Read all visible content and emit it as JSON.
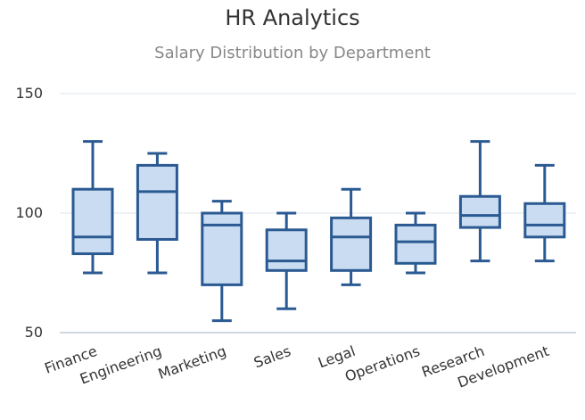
{
  "chart_data": {
    "type": "boxplot",
    "title": "HR Analytics",
    "subtitle": "Salary Distribution by Department",
    "categories": [
      "Finance",
      "Engineering",
      "Marketing",
      "Sales",
      "Legal",
      "Operations",
      "Research",
      "Development"
    ],
    "boxes": [
      {
        "min": 75,
        "q1": 83,
        "median": 90,
        "q3": 110,
        "max": 130
      },
      {
        "min": 75,
        "q1": 89,
        "median": 109,
        "q3": 120,
        "max": 125
      },
      {
        "min": 55,
        "q1": 70,
        "median": 95,
        "q3": 100,
        "max": 105
      },
      {
        "min": 60,
        "q1": 76,
        "median": 80,
        "q3": 93,
        "max": 100
      },
      {
        "min": 70,
        "q1": 76,
        "median": 90,
        "q3": 98,
        "max": 110
      },
      {
        "min": 75,
        "q1": 79,
        "median": 88,
        "q3": 95,
        "max": 100
      },
      {
        "min": 80,
        "q1": 94,
        "median": 99,
        "q3": 107,
        "max": 130
      },
      {
        "min": 80,
        "q1": 90,
        "median": 95,
        "q3": 104,
        "max": 120
      }
    ],
    "yticks": [
      50,
      100,
      150
    ],
    "ylim": [
      50,
      150
    ],
    "grid": true,
    "colors": {
      "box_fill": "#c9dcf2",
      "box_stroke": "#2b5a92",
      "grid": "#dde6ee",
      "axis": "#c0ccd8"
    }
  }
}
